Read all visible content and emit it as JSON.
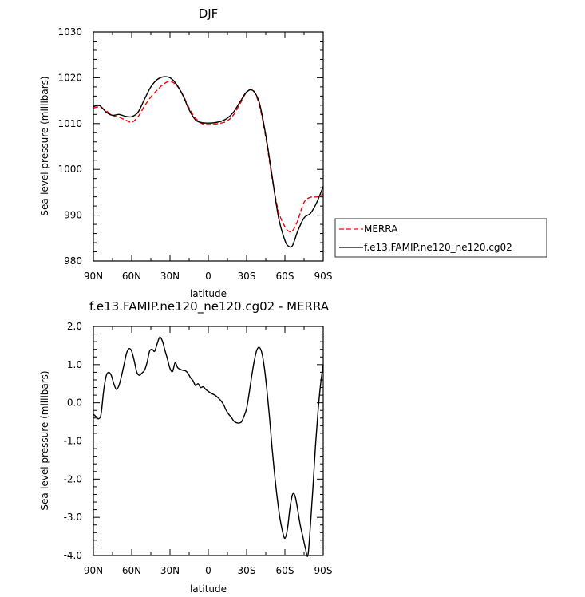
{
  "chart_data": [
    {
      "type": "line",
      "title": "DJF",
      "xlabel": "latitude",
      "ylabel": "Sea-level pressure (millibars)",
      "xlim": [
        90,
        -90
      ],
      "ylim": [
        980,
        1030
      ],
      "xtick_values": [
        90,
        60,
        30,
        0,
        -30,
        -60,
        -90
      ],
      "xtick_labels": [
        "90N",
        "60N",
        "30N",
        "0",
        "30S",
        "60S",
        "90S"
      ],
      "ytick_values": [
        980,
        990,
        1000,
        1010,
        1020,
        1030
      ],
      "ytick_labels": [
        "980",
        "990",
        "1000",
        "1010",
        "1020",
        "1030"
      ],
      "legend_position": "right",
      "series": [
        {
          "name": "MERRA",
          "color": "#ff0000",
          "style": "dashed",
          "x": [
            90,
            85,
            80,
            75,
            70,
            65,
            60,
            55,
            50,
            45,
            40,
            35,
            30,
            25,
            20,
            15,
            10,
            5,
            0,
            -5,
            -10,
            -15,
            -20,
            -25,
            -30,
            -35,
            -40,
            -45,
            -50,
            -55,
            -60,
            -63,
            -66,
            -70,
            -75,
            -80,
            -85,
            -90
          ],
          "y": [
            1013.4,
            1013.6,
            1012.8,
            1011.8,
            1011.4,
            1010.8,
            1010.3,
            1011.5,
            1013.8,
            1015.8,
            1017.3,
            1018.6,
            1019.2,
            1018.4,
            1016.3,
            1013.4,
            1011.2,
            1010.0,
            1009.8,
            1009.9,
            1010.1,
            1010.6,
            1012.0,
            1014.4,
            1016.8,
            1017.3,
            1014.0,
            1007.0,
            998.0,
            990.8,
            987.5,
            986.5,
            986.6,
            988.8,
            992.8,
            993.9,
            994.0,
            994.6
          ]
        },
        {
          "name": "f.e13.FAMIP.ne120_ne120.cg02",
          "color": "#000000",
          "style": "solid",
          "x": [
            90,
            85,
            80,
            75,
            70,
            65,
            60,
            55,
            50,
            45,
            40,
            35,
            30,
            25,
            20,
            15,
            10,
            5,
            0,
            -5,
            -10,
            -15,
            -20,
            -25,
            -30,
            -35,
            -40,
            -45,
            -50,
            -55,
            -60,
            -63,
            -66,
            -70,
            -75,
            -80,
            -85,
            -90
          ],
          "y": [
            1013.7,
            1013.9,
            1012.5,
            1011.8,
            1012.0,
            1011.6,
            1011.5,
            1012.5,
            1015.3,
            1018.0,
            1019.6,
            1020.2,
            1020.0,
            1018.6,
            1016.2,
            1013.0,
            1010.8,
            1010.2,
            1010.1,
            1010.2,
            1010.5,
            1011.2,
            1012.6,
            1014.8,
            1016.9,
            1017.2,
            1014.5,
            1007.5,
            998.5,
            989.5,
            984.5,
            983.2,
            983.4,
            986.5,
            989.4,
            990.4,
            992.8,
            996.3
          ]
        }
      ]
    },
    {
      "type": "line",
      "title": "f.e13.FAMIP.ne120_ne120.cg02 - MERRA",
      "xlabel": "latitude",
      "ylabel": "Sea-level pressure (millibars)",
      "xlim": [
        90,
        -90
      ],
      "ylim": [
        -4.0,
        2.0
      ],
      "xtick_values": [
        90,
        60,
        30,
        0,
        -30,
        -60,
        -90
      ],
      "xtick_labels": [
        "90N",
        "60N",
        "30N",
        "0",
        "30S",
        "60S",
        "90S"
      ],
      "ytick_values": [
        -4.0,
        -3.0,
        -2.0,
        -1.0,
        0.0,
        1.0,
        2.0
      ],
      "ytick_labels": [
        "-4.0",
        "-3.0",
        "-2.0",
        "-1.0",
        "0.0",
        "1.0",
        "2.0"
      ],
      "series": [
        {
          "color": "#000000",
          "style": "solid",
          "x": [
            90,
            88,
            86,
            84,
            82,
            80,
            78,
            76,
            74,
            72,
            70,
            68,
            66,
            64,
            62,
            60,
            58,
            56,
            54,
            52,
            50,
            48,
            46,
            44,
            42,
            40,
            38,
            36,
            34,
            32,
            30,
            28,
            26,
            24,
            22,
            20,
            18,
            16,
            14,
            12,
            10,
            8,
            6,
            4,
            2,
            0,
            -2,
            -4,
            -6,
            -8,
            -10,
            -12,
            -14,
            -16,
            -18,
            -20,
            -22,
            -24,
            -26,
            -28,
            -30,
            -32,
            -34,
            -36,
            -38,
            -40,
            -42,
            -44,
            -46,
            -48,
            -50,
            -52,
            -54,
            -56,
            -58,
            -60,
            -62,
            -64,
            -66,
            -68,
            -70,
            -72,
            -74,
            -76,
            -78,
            -80,
            -82,
            -84,
            -86,
            -88,
            -90
          ],
          "y": [
            -0.3,
            -0.36,
            -0.42,
            -0.3,
            0.3,
            0.7,
            0.8,
            0.72,
            0.5,
            0.35,
            0.45,
            0.7,
            1.0,
            1.3,
            1.42,
            1.35,
            1.1,
            0.8,
            0.72,
            0.78,
            0.85,
            1.05,
            1.35,
            1.4,
            1.35,
            1.55,
            1.72,
            1.62,
            1.38,
            1.15,
            0.9,
            0.82,
            1.05,
            0.92,
            0.88,
            0.85,
            0.84,
            0.78,
            0.66,
            0.58,
            0.45,
            0.5,
            0.4,
            0.42,
            0.35,
            0.3,
            0.25,
            0.22,
            0.18,
            0.12,
            0.05,
            -0.05,
            -0.2,
            -0.3,
            -0.38,
            -0.48,
            -0.52,
            -0.53,
            -0.5,
            -0.35,
            -0.15,
            0.25,
            0.7,
            1.1,
            1.38,
            1.45,
            1.3,
            0.9,
            0.3,
            -0.4,
            -1.2,
            -1.9,
            -2.5,
            -3.0,
            -3.35,
            -3.55,
            -3.3,
            -2.75,
            -2.4,
            -2.45,
            -2.8,
            -3.2,
            -3.5,
            -3.8,
            -4.0,
            -3.2,
            -2.2,
            -1.1,
            -0.2,
            0.5,
            1.0
          ]
        }
      ]
    }
  ]
}
